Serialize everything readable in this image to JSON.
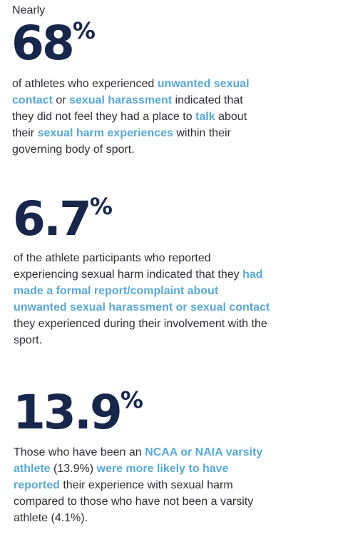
{
  "stats": [
    {
      "lead": "Nearly",
      "number": "68",
      "unit": "%",
      "p1": "of athletes who experienced ",
      "h1": "unwanted sexual contact",
      "p2": " or ",
      "h2": "sexual harassment",
      "p3": " indicated that they did not feel they had a place to ",
      "h3": "talk",
      "p4": " about their ",
      "h4": "sexual harm experiences",
      "p5": " within their governing body of sport."
    },
    {
      "number": "6.7",
      "unit": "%",
      "p1": "of the athlete participants who reported experiencing sexual harm indicated that they ",
      "h1": "had made a formal report/complaint about unwanted sexual harassment or sexual contact",
      "p2": " they experienced during their involvement with the sport."
    },
    {
      "number": "13.9",
      "unit": "%",
      "p1": "Those who have been an ",
      "h1": "NCAA or NAIA varsity athlete",
      "p2": " (13.9%) ",
      "h2": "were more likely to have reported",
      "p3": " their experience with sexual harm compared to those who have not been a varsity athlete (4.1%)."
    }
  ],
  "colors": {
    "number": "#17264a",
    "highlight": "#5aa8d4",
    "text": "#2e2e38"
  }
}
